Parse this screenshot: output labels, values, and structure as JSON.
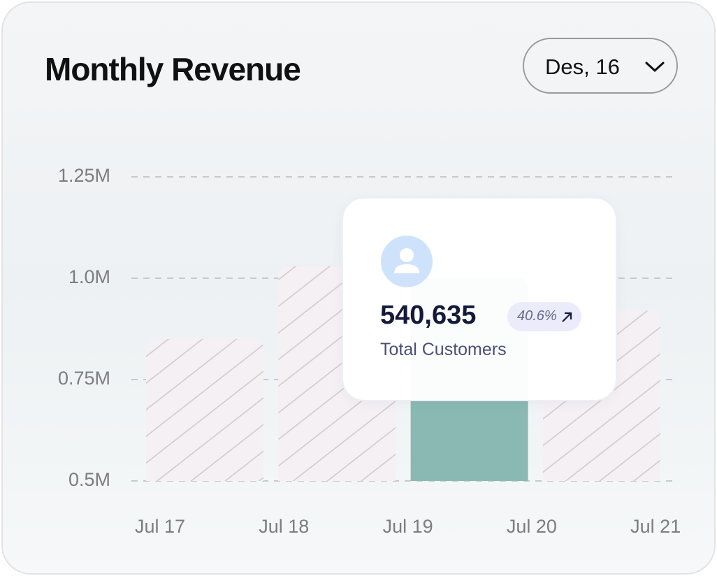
{
  "header": {
    "title": "Monthly Revenue",
    "dropdown": "Des, 16"
  },
  "chart_data": {
    "type": "bar",
    "categories": [
      "Jul 17",
      "Jul 18",
      "Jul 19",
      "Jul 20",
      "Jul 21"
    ],
    "values": [
      0.85,
      1.03,
      1.0,
      0.92,
      null
    ],
    "bar_styles": [
      "hatched",
      "hatched",
      "solid",
      "hatched",
      null
    ],
    "color": "#8ab9b3",
    "hatch_color": "#cfc8ce",
    "ylim": [
      0.5,
      1.3
    ],
    "yticks": [
      {
        "value": 0.5,
        "label": "0.5M"
      },
      {
        "value": 0.75,
        "label": "0.75M"
      },
      {
        "value": 1.0,
        "label": "1.0M"
      },
      {
        "value": 1.25,
        "label": "1.25M"
      }
    ],
    "grid": true
  },
  "tooltip": {
    "value": "540,635",
    "change": "40.6%",
    "label": "Total Customers"
  }
}
